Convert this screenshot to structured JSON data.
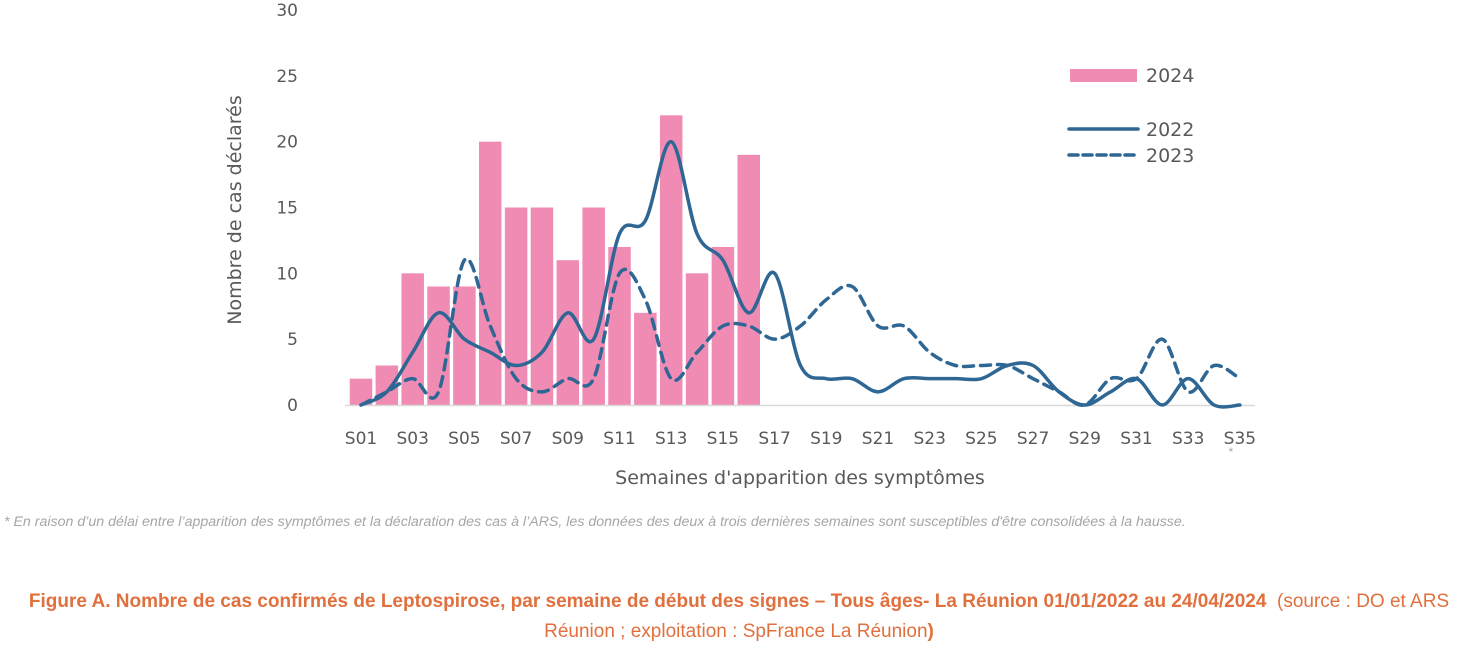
{
  "chart_data": {
    "type": "bar+line",
    "title": "",
    "xlabel": "Semaines d'apparition des symptômes",
    "ylabel": "Nombre de cas déclarés",
    "ylim": [
      0,
      30
    ],
    "yticks": [
      0,
      5,
      10,
      15,
      20,
      25,
      30
    ],
    "grid": false,
    "legend_position": "top-right",
    "categories": [
      "S01",
      "S02",
      "S03",
      "S04",
      "S05",
      "S06",
      "S07",
      "S08",
      "S09",
      "S10",
      "S11",
      "S12",
      "S13",
      "S14",
      "S15",
      "S16",
      "S17",
      "S18",
      "S19",
      "S20",
      "S21",
      "S22",
      "S23",
      "S24",
      "S25",
      "S26",
      "S27",
      "S28",
      "S29",
      "S30",
      "S31",
      "S32",
      "S33",
      "S34",
      "S35"
    ],
    "xtick_labels": [
      "S01",
      "S03",
      "S05",
      "S07",
      "S09",
      "S11",
      "S13",
      "S15",
      "S17",
      "S19",
      "S21",
      "S23",
      "S25",
      "S27",
      "S29",
      "S31",
      "S33",
      "S35"
    ],
    "last_tick_marker": "*",
    "series": [
      {
        "name": "2024",
        "kind": "bar",
        "color": "#f08cb4",
        "values": [
          2,
          3,
          10,
          9,
          9,
          20,
          15,
          15,
          11,
          15,
          12,
          7,
          22,
          10,
          12,
          19
        ]
      },
      {
        "name": "2022",
        "kind": "line",
        "style": "solid",
        "color": "#2e6694",
        "values": [
          0,
          1,
          4,
          7,
          5,
          4,
          3,
          4,
          7,
          5,
          13,
          14,
          20,
          13,
          11,
          7,
          10,
          3,
          2,
          2,
          1,
          2,
          2,
          2,
          2,
          3,
          3,
          1,
          0,
          1,
          2,
          0,
          2,
          0,
          0
        ]
      },
      {
        "name": "2023",
        "kind": "line",
        "style": "dashed",
        "color": "#2e6694",
        "values": [
          0,
          1,
          2,
          1,
          11,
          6,
          2,
          1,
          2,
          2,
          10,
          8,
          2,
          4,
          6,
          6,
          5,
          6,
          8,
          9,
          6,
          6,
          4,
          3,
          3,
          3,
          2,
          1,
          0,
          2,
          2,
          5,
          1,
          3,
          2
        ]
      }
    ]
  },
  "legend": [
    {
      "label": "2024",
      "marker": "bar"
    },
    {
      "label": "2022",
      "marker": "solid-line"
    },
    {
      "label": "2023",
      "marker": "dashed-line"
    }
  ],
  "footnote": "* En raison d’un délai entre l’apparition des symptômes et la déclaration des cas à l’ARS, les données des deux à trois dernières semaines sont susceptibles d'être consolidées à la hausse.",
  "caption": {
    "bold": "Figure A. Nombre de cas confirmés de Leptospirose, par semaine de début des signes – Tous âges- La Réunion 01/01/2022 au 24/04/2024",
    "source_open": "(source : DO et ARS Réunion ; exploitation : SpFrance La Réunion",
    "source_close": ")"
  }
}
